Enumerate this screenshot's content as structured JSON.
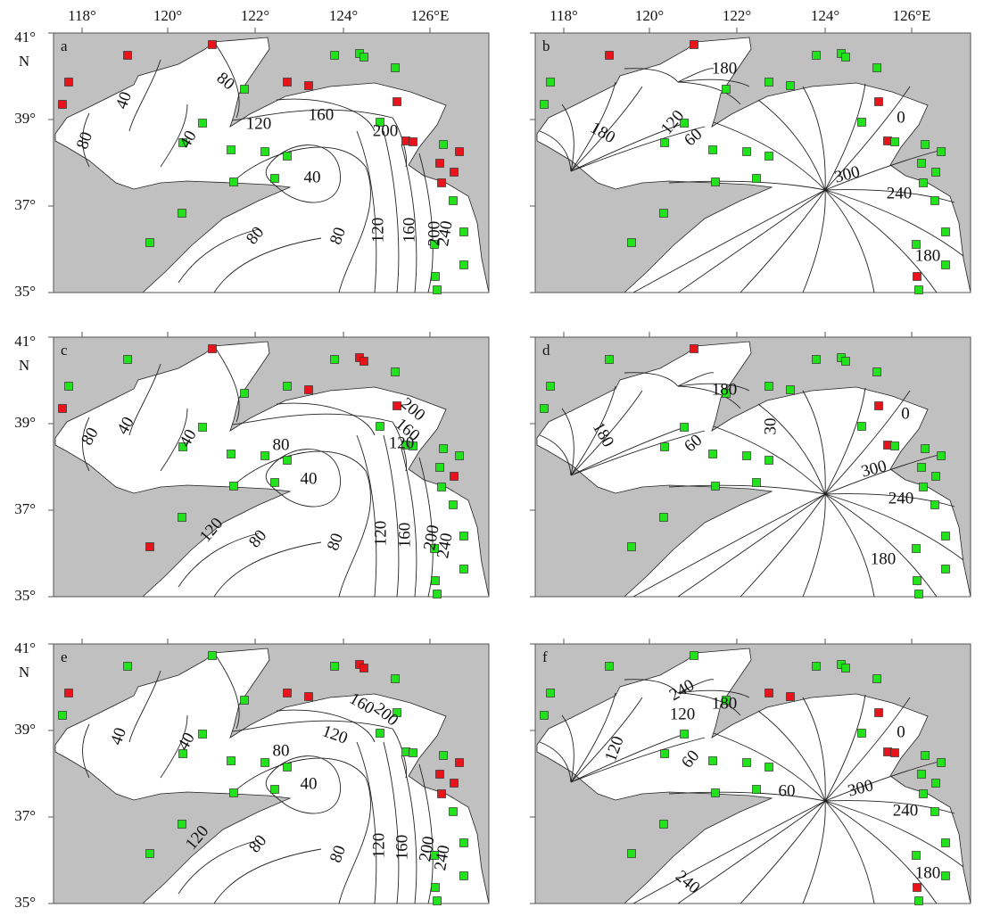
{
  "x_tick_labels": [
    "118°",
    "120°",
    "122°",
    "124°",
    "126°E"
  ],
  "y_tick_labels": [
    "41°",
    "39°",
    "37°",
    "35°"
  ],
  "north_label": "N",
  "panels": [
    {
      "letter": "a",
      "contour_labels": [
        80,
        40,
        80,
        40,
        120,
        160,
        200,
        40,
        80,
        120,
        160,
        200,
        240,
        80
      ]
    },
    {
      "letter": "b",
      "contour_labels": [
        180,
        180,
        120,
        60,
        0,
        300,
        240,
        180
      ]
    },
    {
      "letter": "c",
      "contour_labels": [
        80,
        40,
        40,
        80,
        120,
        160,
        200,
        40,
        80,
        120,
        160,
        200,
        240,
        120,
        80
      ]
    },
    {
      "letter": "d",
      "contour_labels": [
        180,
        180,
        60,
        30,
        0,
        300,
        240,
        180
      ]
    },
    {
      "letter": "e",
      "contour_labels": [
        40,
        40,
        200,
        160,
        120,
        80,
        40,
        80,
        120,
        160,
        200,
        240,
        120,
        80
      ]
    },
    {
      "letter": "f",
      "contour_labels": [
        240,
        120,
        180,
        120,
        60,
        0,
        60,
        300,
        240,
        180,
        240
      ]
    }
  ]
}
